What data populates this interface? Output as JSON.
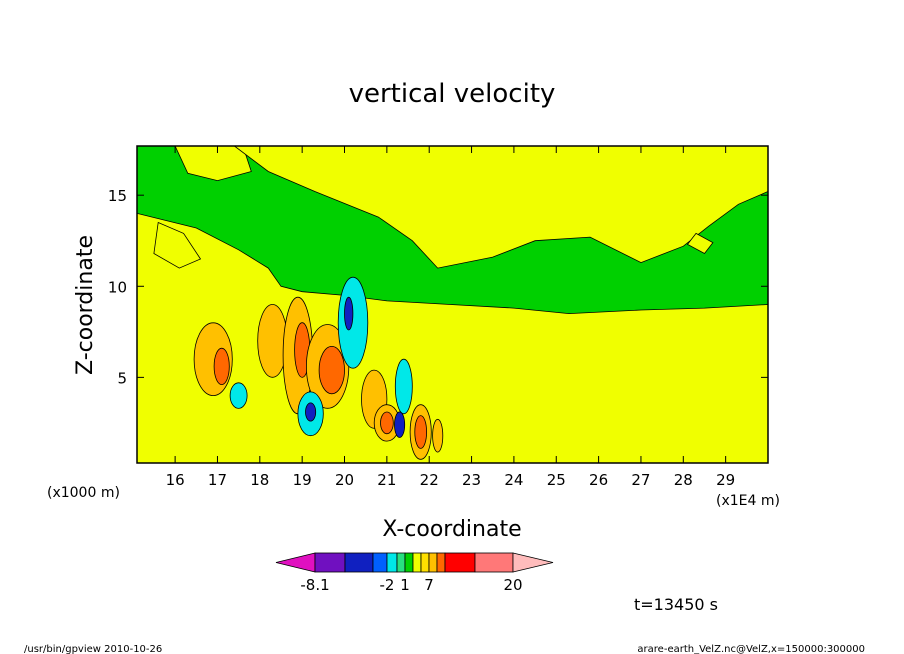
{
  "chart_data": {
    "type": "heatmap",
    "title": "vertical velocity",
    "xlabel": "X-coordinate",
    "ylabel": "Z-coordinate",
    "x_unit_left": "(x1000 m)",
    "x_unit_right": "(x1E4 m)",
    "xlim": [
      15.1,
      30.0
    ],
    "ylim": [
      0.3,
      17.7
    ],
    "x_ticks": [
      "16",
      "17",
      "18",
      "19",
      "20",
      "21",
      "22",
      "23",
      "24",
      "25",
      "26",
      "27",
      "28",
      "29"
    ],
    "x_tick_values": [
      16,
      17,
      18,
      19,
      20,
      21,
      22,
      23,
      24,
      25,
      26,
      27,
      28,
      29
    ],
    "y_ticks": [
      "5",
      "10",
      "15"
    ],
    "y_tick_values": [
      5,
      10,
      15
    ],
    "regions": [
      {
        "level": "1",
        "color": "#f0ff00",
        "points": [
          [
            15.1,
            14.0
          ],
          [
            16.5,
            13.2
          ],
          [
            17.5,
            12.0
          ],
          [
            18.2,
            11.0
          ],
          [
            18.5,
            10.0
          ],
          [
            19.0,
            9.7
          ],
          [
            20.0,
            9.5
          ],
          [
            21.0,
            9.2
          ],
          [
            22.5,
            9.0
          ],
          [
            24.0,
            8.8
          ],
          [
            25.3,
            8.5
          ],
          [
            27.0,
            8.7
          ],
          [
            28.5,
            8.8
          ],
          [
            30.0,
            9.0
          ],
          [
            30.0,
            0.3
          ],
          [
            15.1,
            0.3
          ]
        ]
      },
      {
        "level": "1",
        "color": "#f0ff00",
        "points": [
          [
            16.0,
            17.7
          ],
          [
            16.3,
            16.2
          ],
          [
            17.0,
            15.8
          ],
          [
            17.8,
            16.3
          ],
          [
            17.6,
            17.7
          ]
        ]
      },
      {
        "level": "1",
        "color": "#f0ff00",
        "points": [
          [
            17.4,
            17.7
          ],
          [
            18.2,
            16.3
          ],
          [
            19.3,
            15.2
          ],
          [
            20.8,
            13.8
          ],
          [
            21.6,
            12.5
          ],
          [
            22.2,
            11.0
          ],
          [
            23.5,
            11.6
          ],
          [
            24.5,
            12.5
          ],
          [
            25.8,
            12.7
          ],
          [
            27.0,
            11.3
          ],
          [
            28.0,
            12.2
          ],
          [
            28.6,
            13.3
          ],
          [
            29.3,
            14.5
          ],
          [
            30.0,
            15.2
          ],
          [
            30.0,
            17.7
          ]
        ]
      },
      {
        "level": "1",
        "color": "#f0ff00",
        "points": [
          [
            15.6,
            13.5
          ],
          [
            16.2,
            12.9
          ],
          [
            16.6,
            11.5
          ],
          [
            16.1,
            11.0
          ],
          [
            15.5,
            11.8
          ]
        ]
      },
      {
        "level": "1",
        "color": "#f0ff00",
        "points": [
          [
            28.3,
            12.9
          ],
          [
            28.7,
            12.4
          ],
          [
            28.5,
            11.8
          ],
          [
            28.1,
            12.3
          ]
        ]
      }
    ],
    "cells": [
      {
        "x": 16.9,
        "y": 6.0,
        "rx": 0.45,
        "ry": 2.0,
        "level": "2",
        "color": "#ffc000"
      },
      {
        "x": 17.1,
        "y": 5.6,
        "rx": 0.18,
        "ry": 1.0,
        "level": "7",
        "color": "#ff6800"
      },
      {
        "x": 18.3,
        "y": 7.0,
        "rx": 0.35,
        "ry": 2.0,
        "level": "2",
        "color": "#ffc000"
      },
      {
        "x": 18.9,
        "y": 6.2,
        "rx": 0.35,
        "ry": 3.2,
        "level": "2",
        "color": "#ffc000"
      },
      {
        "x": 19.0,
        "y": 6.5,
        "rx": 0.18,
        "ry": 1.5,
        "level": "7",
        "color": "#ff6800"
      },
      {
        "x": 19.6,
        "y": 5.6,
        "rx": 0.5,
        "ry": 2.3,
        "level": "2",
        "color": "#ffc000"
      },
      {
        "x": 19.7,
        "y": 5.4,
        "rx": 0.3,
        "ry": 1.3,
        "level": "7",
        "color": "#ff6800"
      },
      {
        "x": 20.2,
        "y": 8.0,
        "rx": 0.35,
        "ry": 2.5,
        "level": "-1",
        "color": "#00e8e8"
      },
      {
        "x": 20.1,
        "y": 8.5,
        "rx": 0.1,
        "ry": 0.9,
        "level": "-8.1",
        "color": "#1020c0"
      },
      {
        "x": 19.2,
        "y": 3.0,
        "rx": 0.3,
        "ry": 1.2,
        "level": "-1",
        "color": "#00e8e8"
      },
      {
        "x": 19.2,
        "y": 3.1,
        "rx": 0.12,
        "ry": 0.5,
        "level": "-8.1",
        "color": "#1020c0"
      },
      {
        "x": 20.7,
        "y": 3.8,
        "rx": 0.3,
        "ry": 1.6,
        "level": "2",
        "color": "#ffc000"
      },
      {
        "x": 21.0,
        "y": 2.5,
        "rx": 0.3,
        "ry": 1.0,
        "level": "2",
        "color": "#ffc000"
      },
      {
        "x": 21.0,
        "y": 2.5,
        "rx": 0.15,
        "ry": 0.6,
        "level": "7",
        "color": "#ff6800"
      },
      {
        "x": 21.4,
        "y": 4.5,
        "rx": 0.2,
        "ry": 1.5,
        "level": "-1",
        "color": "#00e8e8"
      },
      {
        "x": 21.3,
        "y": 2.4,
        "rx": 0.12,
        "ry": 0.7,
        "level": "-8.1",
        "color": "#1020c0"
      },
      {
        "x": 21.8,
        "y": 2.0,
        "rx": 0.25,
        "ry": 1.5,
        "level": "2",
        "color": "#ffc000"
      },
      {
        "x": 21.8,
        "y": 2.0,
        "rx": 0.14,
        "ry": 0.9,
        "level": "7",
        "color": "#ff6800"
      },
      {
        "x": 22.2,
        "y": 1.8,
        "rx": 0.12,
        "ry": 0.9,
        "level": "2",
        "color": "#ffc000"
      },
      {
        "x": 17.5,
        "y": 4.0,
        "rx": 0.2,
        "ry": 0.7,
        "level": "-1",
        "color": "#00e8e8"
      }
    ],
    "colorbar": {
      "labels": [
        "-8.1",
        "-2",
        "1",
        "7",
        "20"
      ],
      "label_positions": [
        1,
        4,
        6,
        9,
        13
      ],
      "colors": [
        "#e010c0",
        "#7010c0",
        "#1020c0",
        "#0060ff",
        "#00e8e8",
        "#28e080",
        "#00d000",
        "#f0ff00",
        "#ffe000",
        "#ffc000",
        "#ff6800",
        "#ff0000",
        "#ff7878",
        "#ffbcbc"
      ]
    },
    "time_label": "t=13450 s"
  },
  "footer": {
    "left": "/usr/bin/gpview   2010-10-26",
    "right": "arare-earth_VelZ.nc@VelZ,x=150000:300000"
  }
}
